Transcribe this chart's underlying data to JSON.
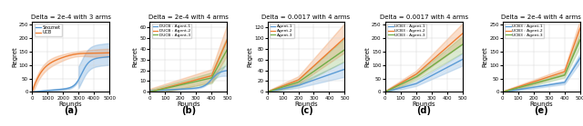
{
  "fig_width": 6.4,
  "fig_height": 1.39,
  "dpi": 100,
  "subplots": [
    {
      "label": "(a)",
      "title": "Delta = 2e-4 with 3 arms",
      "xlabel": "Rounds",
      "ylabel": "Regret",
      "xlim": [
        0,
        5000
      ],
      "ylim": [
        0,
        260
      ],
      "ytick_step": 50,
      "xtick_step": 1000,
      "lines": [
        {
          "label": "Snoznet",
          "color": "#5B9BD5",
          "lw": 1.0
        },
        {
          "label": "UCB",
          "color": "#ED7D31",
          "lw": 1.0
        }
      ]
    },
    {
      "label": "(b)",
      "title": "Delta = 2e-4 with 4 arms",
      "xlabel": "Rounds",
      "ylabel": "Regret",
      "xlim": [
        0,
        500
      ],
      "ylim": [
        0,
        65
      ],
      "ytick_step": 10,
      "xtick_step": 100,
      "lines": [
        {
          "label": "DUCB : Agent-1",
          "color": "#5B9BD5",
          "lw": 1.0
        },
        {
          "label": "DUCB : Agent-2",
          "color": "#ED7D31",
          "lw": 1.0
        },
        {
          "label": "DUCB : Agent-3",
          "color": "#70AD47",
          "lw": 1.0
        }
      ]
    },
    {
      "label": "(c)",
      "title": "Delta = 0.0017 with 4 arms",
      "xlabel": "Rounds",
      "ylabel": "Regret",
      "xlim": [
        0,
        500
      ],
      "ylim": [
        0,
        130
      ],
      "ytick_step": 20,
      "xtick_step": 100,
      "lines": [
        {
          "label": "Agent-1",
          "color": "#5B9BD5",
          "lw": 1.0
        },
        {
          "label": "Agent-2",
          "color": "#ED7D31",
          "lw": 1.0
        },
        {
          "label": "Agent-3",
          "color": "#70AD47",
          "lw": 1.0
        }
      ]
    },
    {
      "label": "(d)",
      "title": "Delta = 0.0017 with 4 arms",
      "xlabel": "Rounds",
      "ylabel": "Regret",
      "xlim": [
        0,
        500
      ],
      "ylim": [
        0,
        260
      ],
      "ytick_step": 50,
      "xtick_step": 100,
      "lines": [
        {
          "label": "UCB3 : Agent-1",
          "color": "#5B9BD5",
          "lw": 1.0
        },
        {
          "label": "UCB3 : Agent-2",
          "color": "#ED7D31",
          "lw": 1.0
        },
        {
          "label": "UCB3 : Agent-3",
          "color": "#70AD47",
          "lw": 1.0
        }
      ]
    },
    {
      "label": "(e)",
      "title": "Delta = 2e-4 with 4 arms",
      "xlabel": "Rounds",
      "ylabel": "Regret",
      "xlim": [
        0,
        500
      ],
      "ylim": [
        0,
        260
      ],
      "ytick_step": 50,
      "xtick_step": 100,
      "lines": [
        {
          "label": "UCB3 : Agent-1",
          "color": "#5B9BD5",
          "lw": 1.0
        },
        {
          "label": "UCB3 : Agent-2",
          "color": "#ED7D31",
          "lw": 1.0
        },
        {
          "label": "UCB3 : Agent-3",
          "color": "#70AD47",
          "lw": 1.0
        }
      ]
    }
  ]
}
